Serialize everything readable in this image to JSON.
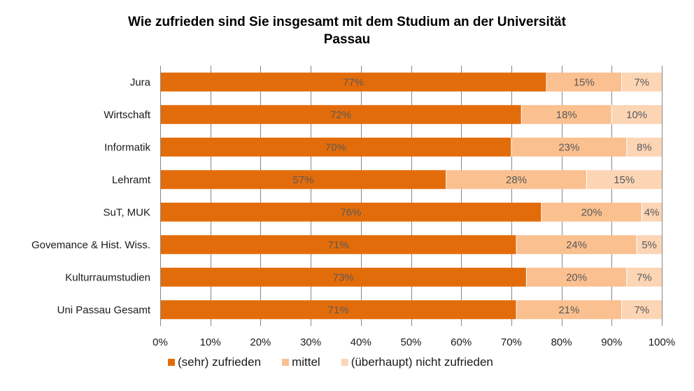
{
  "chart_data": {
    "type": "bar",
    "orientation": "horizontal",
    "stacked": true,
    "title_lines": [
      "Wie zufrieden sind Sie insgesamt mit dem Studium an der Universität",
      "Passau"
    ],
    "categories": [
      "Jura",
      "Wirtschaft",
      "Informatik",
      "Lehramt",
      "SuT, MUK",
      "Govemance & Hist. Wiss.",
      "Kulturraumstudien",
      "Uni Passau Gesamt"
    ],
    "series": [
      {
        "name": "(sehr) zufrieden",
        "color": "#e36c0a",
        "values": [
          77,
          72,
          70,
          57,
          76,
          71,
          73,
          71
        ],
        "labels": [
          "77%",
          "72%",
          "70%",
          "57%",
          "76%",
          "71%",
          "73%",
          "71%"
        ]
      },
      {
        "name": "mittel",
        "color": "#fac08f",
        "values": [
          15,
          18,
          23,
          28,
          20,
          24,
          20,
          21
        ],
        "labels": [
          "15%",
          "18%",
          "23%",
          "28%",
          "20%",
          "24%",
          "20%",
          "21%"
        ]
      },
      {
        "name": "(überhaupt) nicht zufrieden",
        "color": "#fcd5b5",
        "values": [
          7,
          10,
          8,
          15,
          4,
          5,
          7,
          7
        ],
        "labels": [
          "7%",
          "10%",
          "8%",
          "15%",
          "4%",
          "5%",
          "7%",
          "7%"
        ]
      }
    ],
    "xlim": [
      0,
      100
    ],
    "xticks": [
      "0%",
      "10%",
      "20%",
      "30%",
      "40%",
      "50%",
      "60%",
      "70%",
      "80%",
      "90%",
      "100%"
    ],
    "xlabel": "",
    "ylabel": "",
    "grid": true,
    "legend": "bottom",
    "colors": {
      "grid": "#868686",
      "axis": "#868686",
      "data_label": "#595959",
      "separator": "#ffffff"
    }
  }
}
